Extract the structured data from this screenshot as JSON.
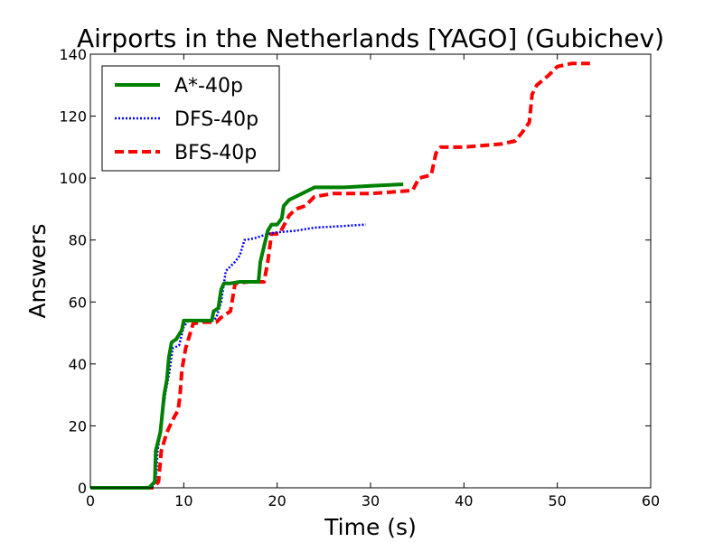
{
  "chart_data": {
    "type": "line",
    "title": "Airports in the Netherlands [YAGO] (Gubichev)",
    "xlabel": "Time (s)",
    "ylabel": "Answers",
    "xlim": [
      0,
      60
    ],
    "ylim": [
      0,
      140
    ],
    "xticks": [
      0,
      10,
      20,
      30,
      40,
      50,
      60
    ],
    "yticks": [
      0,
      20,
      40,
      60,
      80,
      100,
      120,
      140
    ],
    "grid": false,
    "legend_position": "top-left",
    "series": [
      {
        "name": "A*-40p",
        "color": "#008000",
        "style": "solid",
        "points": [
          [
            0,
            0
          ],
          [
            6.3,
            0
          ],
          [
            6.9,
            2
          ],
          [
            7.0,
            12
          ],
          [
            7.5,
            18
          ],
          [
            7.9,
            30
          ],
          [
            8.2,
            35
          ],
          [
            8.4,
            42
          ],
          [
            8.7,
            47
          ],
          [
            9.2,
            48
          ],
          [
            9.8,
            51
          ],
          [
            10.0,
            54
          ],
          [
            11,
            54
          ],
          [
            12,
            54
          ],
          [
            13.0,
            54
          ],
          [
            13.2,
            57
          ],
          [
            13.7,
            58
          ],
          [
            14.0,
            64
          ],
          [
            14.3,
            66
          ],
          [
            15,
            66
          ],
          [
            16,
            66.5
          ],
          [
            17,
            66.5
          ],
          [
            18.0,
            66.5
          ],
          [
            18.2,
            73
          ],
          [
            18.6,
            78
          ],
          [
            19.0,
            83
          ],
          [
            19.4,
            85
          ],
          [
            20,
            85
          ],
          [
            20.5,
            87
          ],
          [
            20.7,
            91
          ],
          [
            21.3,
            93
          ],
          [
            22,
            94
          ],
          [
            23,
            95.5
          ],
          [
            24,
            97
          ],
          [
            27,
            97
          ],
          [
            30,
            97.5
          ],
          [
            33.5,
            98
          ]
        ]
      },
      {
        "name": "DFS-40p",
        "color": "#0000ff",
        "style": "dotted",
        "points": [
          [
            0,
            0
          ],
          [
            6.5,
            0
          ],
          [
            7.0,
            2
          ],
          [
            7.2,
            12
          ],
          [
            7.6,
            20
          ],
          [
            8.0,
            30
          ],
          [
            8.5,
            38
          ],
          [
            8.8,
            45
          ],
          [
            9.5,
            46
          ],
          [
            10.0,
            52
          ],
          [
            10.5,
            54
          ],
          [
            12,
            54
          ],
          [
            13.2,
            54
          ],
          [
            13.5,
            55
          ],
          [
            14.0,
            60
          ],
          [
            14.5,
            70
          ],
          [
            15.5,
            73
          ],
          [
            16.0,
            75
          ],
          [
            16.5,
            80
          ],
          [
            17.5,
            80.5
          ],
          [
            19,
            82
          ],
          [
            20,
            82.5
          ],
          [
            22,
            83
          ],
          [
            24,
            84
          ],
          [
            27,
            84.5
          ],
          [
            29.5,
            85
          ]
        ]
      },
      {
        "name": "BFS-40p",
        "color": "#ff0000",
        "style": "dashed",
        "points": [
          [
            0,
            0
          ],
          [
            6.8,
            0
          ],
          [
            7.3,
            2
          ],
          [
            7.6,
            12
          ],
          [
            8.2,
            18
          ],
          [
            9.0,
            23
          ],
          [
            9.4,
            25
          ],
          [
            9.6,
            30
          ],
          [
            9.8,
            38
          ],
          [
            10.2,
            45
          ],
          [
            10.7,
            50
          ],
          [
            11,
            53
          ],
          [
            12,
            53.5
          ],
          [
            13.5,
            53.5
          ],
          [
            14.0,
            55
          ],
          [
            15.0,
            57
          ],
          [
            15.5,
            66
          ],
          [
            17,
            66.5
          ],
          [
            18.6,
            66.5
          ],
          [
            19.0,
            73
          ],
          [
            19.4,
            82
          ],
          [
            20.2,
            82
          ],
          [
            20.6,
            84
          ],
          [
            21.3,
            88
          ],
          [
            22,
            90
          ],
          [
            23,
            91
          ],
          [
            24,
            94
          ],
          [
            26,
            95
          ],
          [
            30,
            95
          ],
          [
            34.5,
            96
          ],
          [
            35.2,
            100
          ],
          [
            36.5,
            101
          ],
          [
            37.0,
            108
          ],
          [
            37.5,
            110
          ],
          [
            40,
            110
          ],
          [
            44,
            111
          ],
          [
            45.5,
            112
          ],
          [
            46.3,
            115
          ],
          [
            47.0,
            118
          ],
          [
            47.3,
            127
          ],
          [
            47.8,
            130
          ],
          [
            49,
            133
          ],
          [
            50,
            136
          ],
          [
            51.5,
            137
          ],
          [
            53.5,
            137
          ]
        ]
      }
    ]
  }
}
